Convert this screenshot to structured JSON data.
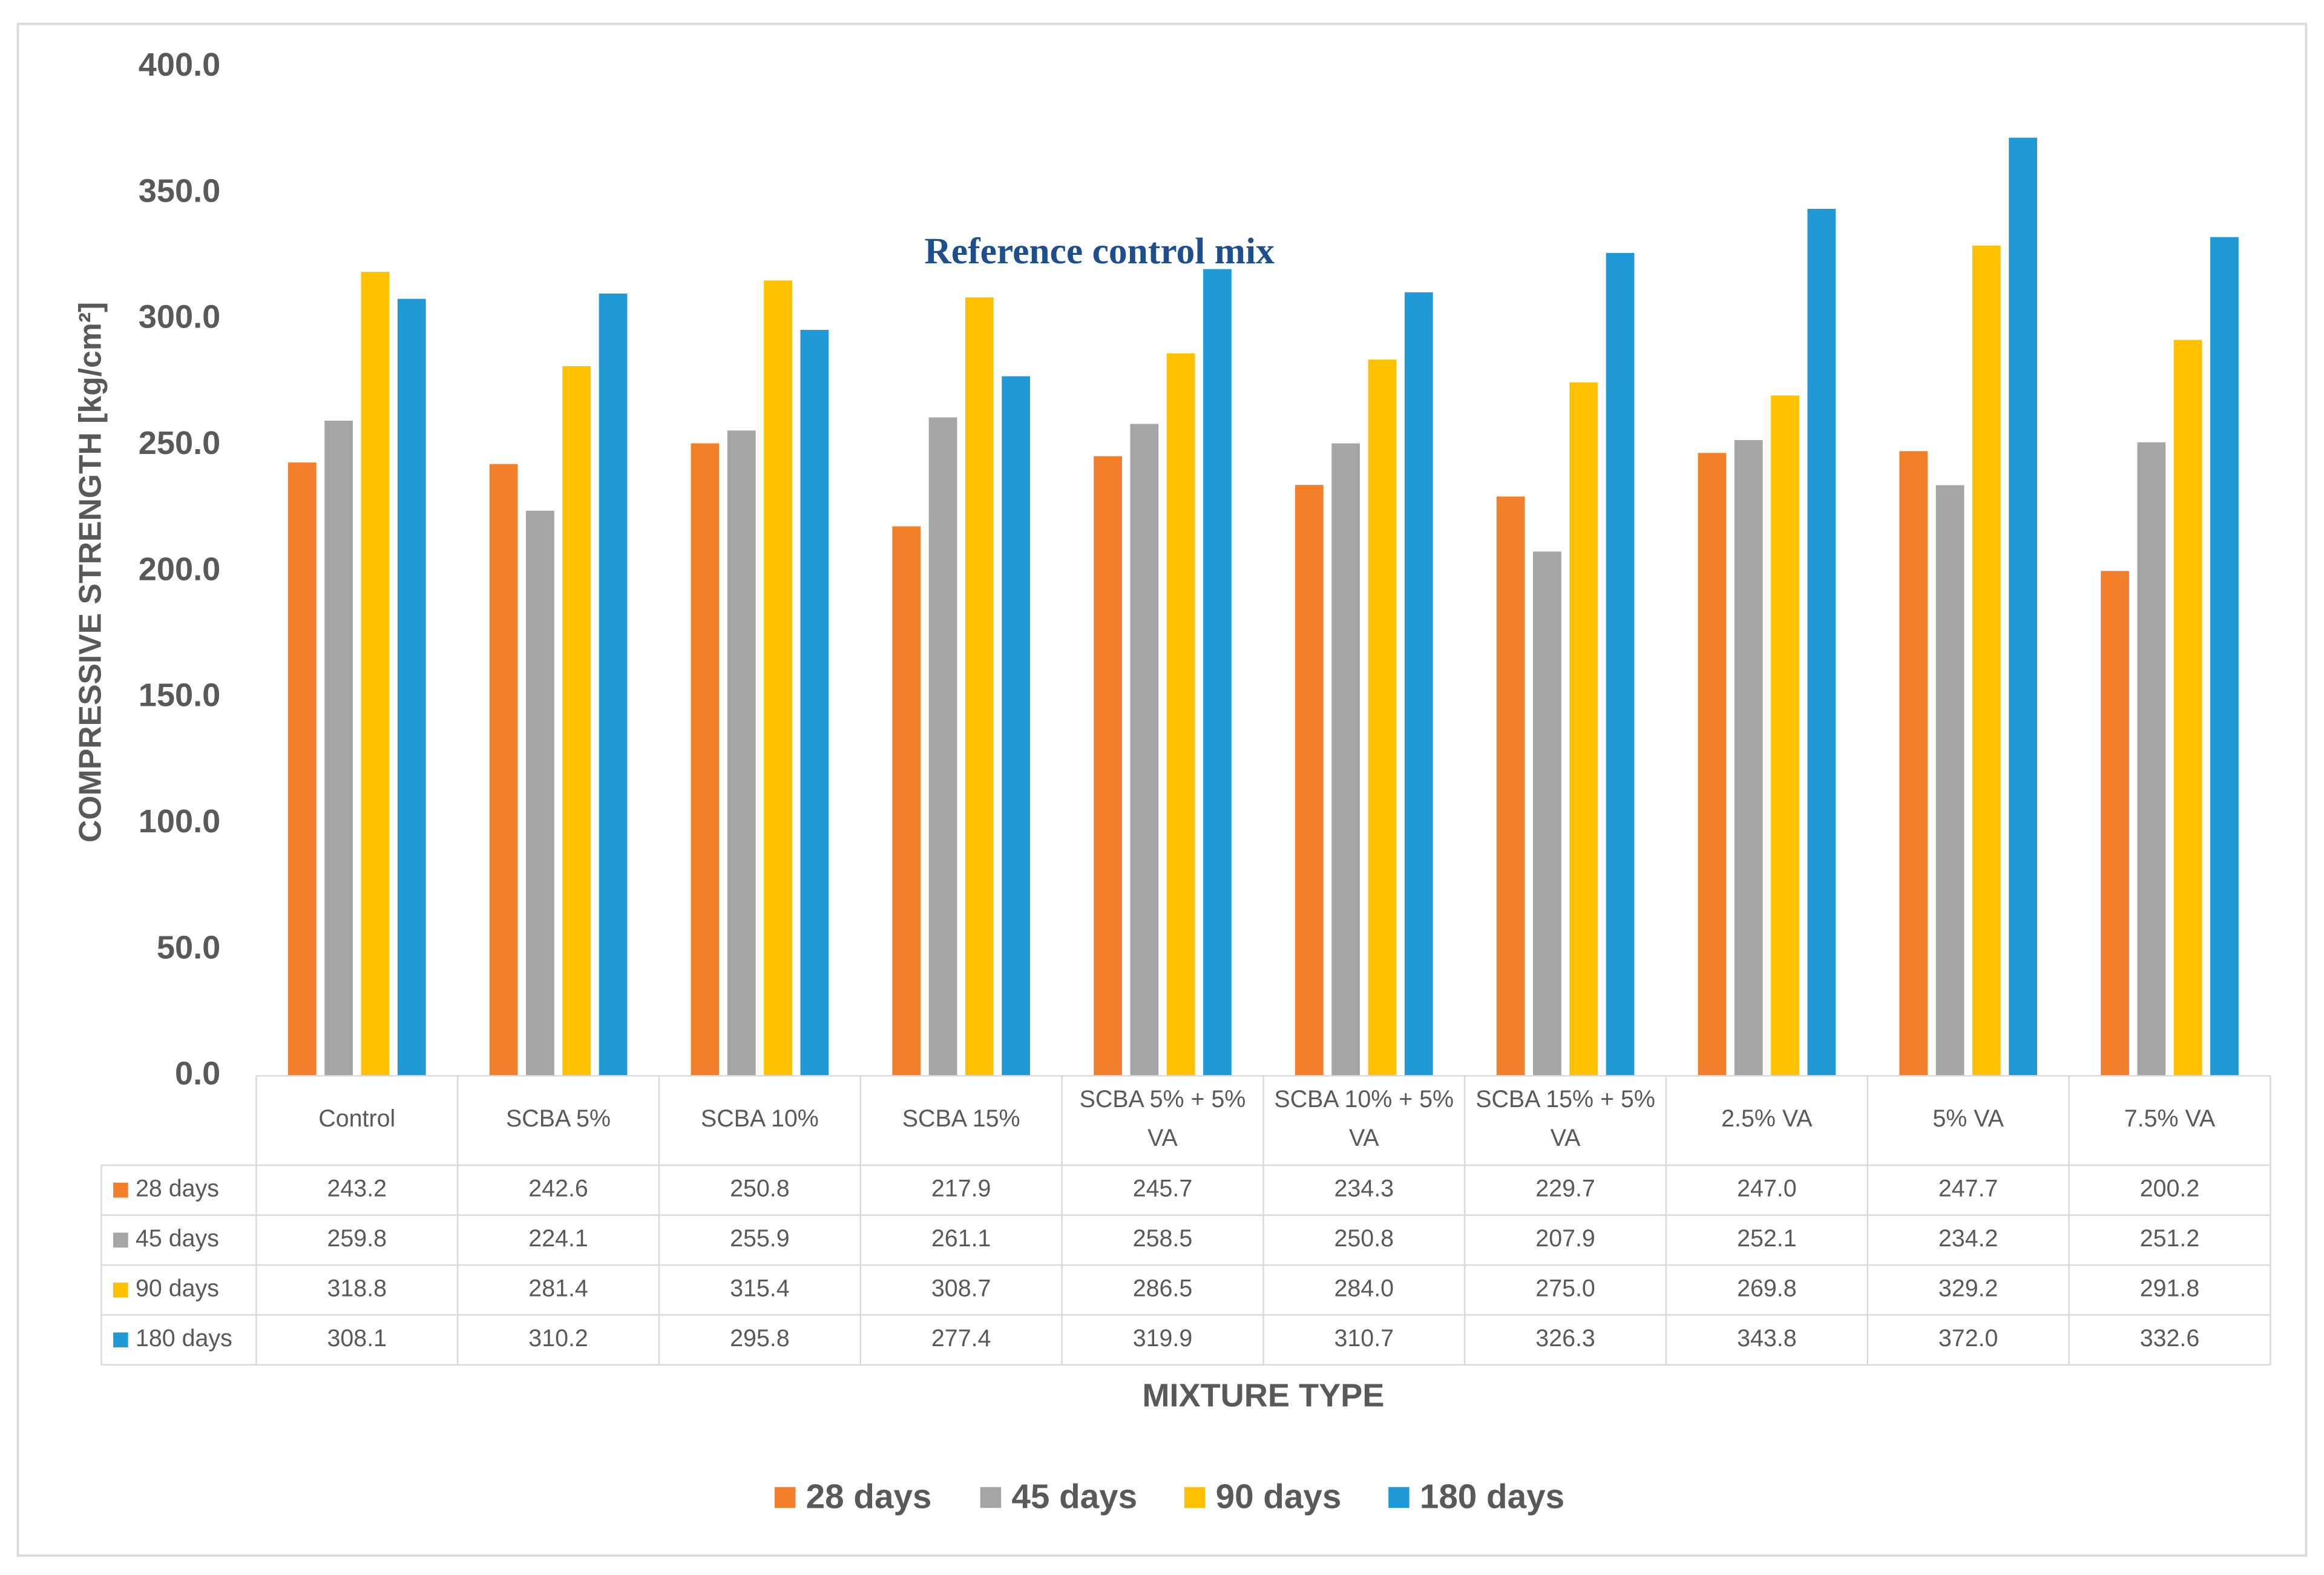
{
  "chart_data": {
    "type": "bar",
    "y_label": "COMPRESSIVE STRENGTH [kg/cm²]",
    "x_label": "MIXTURE TYPE",
    "annotation": "Reference control mix",
    "categories": [
      "Control",
      "SCBA 5%",
      "SCBA 10%",
      "SCBA 15%",
      "SCBA 5% + 5% VA",
      "SCBA 10% + 5% VA",
      "SCBA 15% + 5% VA",
      "2.5% VA",
      "5% VA",
      "7.5% VA"
    ],
    "series": [
      {
        "name": "28 days",
        "color": "#f47f2b",
        "values": [
          243.2,
          242.6,
          250.8,
          217.9,
          245.7,
          234.3,
          229.7,
          247.0,
          247.7,
          200.2
        ],
        "value_labels": [
          "243.2",
          "242.6",
          "250.8",
          "217.9",
          "245.7",
          "234.3",
          "229.7",
          "247.0",
          "247.7",
          "200.2"
        ]
      },
      {
        "name": "45 days",
        "color": "#a5a5a5",
        "values": [
          259.8,
          224.1,
          255.9,
          261.1,
          258.5,
          250.8,
          207.9,
          252.1,
          234.2,
          251.2
        ],
        "value_labels": [
          "259.8",
          "224.1",
          "255.9",
          "261.1",
          "258.5",
          "250.8",
          "207.9",
          "252.1",
          "234.2",
          "251.2"
        ]
      },
      {
        "name": "90 days",
        "color": "#ffc000",
        "values": [
          318.8,
          281.4,
          315.4,
          308.7,
          286.5,
          284.0,
          275.0,
          269.8,
          329.2,
          291.8
        ],
        "value_labels": [
          "318.8",
          "281.4",
          "315.4",
          "308.7",
          "286.5",
          "284.0",
          "275.0",
          "269.8",
          "329.2",
          "291.8"
        ]
      },
      {
        "name": "180 days",
        "color": "#1f9ad6",
        "values": [
          308.1,
          310.2,
          295.8,
          277.4,
          319.9,
          310.7,
          326.3,
          343.8,
          372.0,
          332.6
        ],
        "value_labels": [
          "308.1",
          "310.2",
          "295.8",
          "277.4",
          "319.9",
          "310.7",
          "326.3",
          "343.8",
          "372.0",
          "332.6"
        ]
      }
    ],
    "ylim": [
      0,
      400
    ],
    "yticks": [
      {
        "value": 0,
        "label": "0.0"
      },
      {
        "value": 50,
        "label": "50.0"
      },
      {
        "value": 100,
        "label": "100.0"
      },
      {
        "value": 150,
        "label": "150.0"
      },
      {
        "value": 200,
        "label": "200.0"
      },
      {
        "value": 250,
        "label": "250.0"
      },
      {
        "value": 300,
        "label": "300.0"
      },
      {
        "value": 350,
        "label": "350.0"
      },
      {
        "value": 400,
        "label": "400.0"
      }
    ],
    "grid": false,
    "legend": "bottom"
  }
}
